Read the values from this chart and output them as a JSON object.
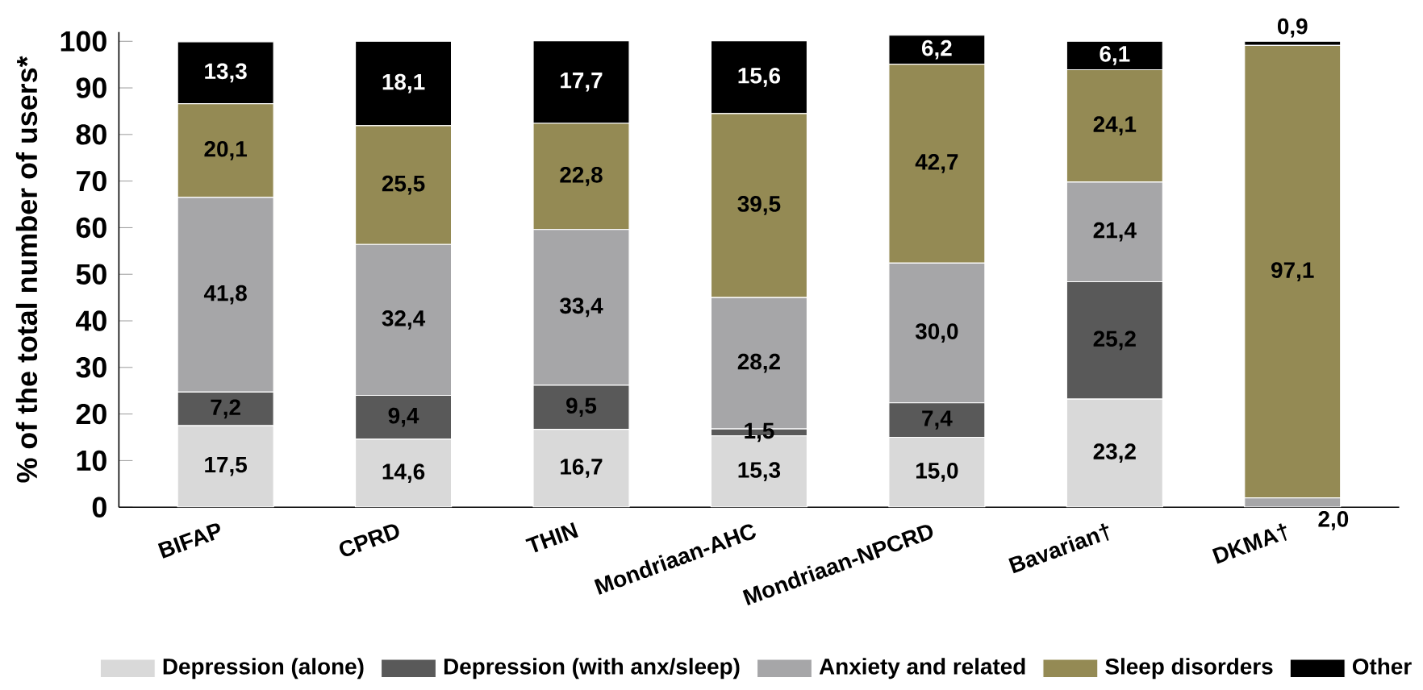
{
  "chart_data": {
    "type": "bar",
    "stacked": true,
    "ylabel": "% of the total number of users*",
    "categories": [
      "BIFAP",
      "CPRD",
      "THIN",
      "Mondriaan-AHC",
      "Mondriaan-NPCRD",
      "Bavarian†",
      "DKMA†"
    ],
    "ylim": [
      0,
      102
    ],
    "yticks": [
      0,
      10,
      20,
      30,
      40,
      50,
      60,
      70,
      80,
      90,
      100
    ],
    "legend": "bottom",
    "grid": false,
    "series": [
      {
        "name": "Depression (alone)",
        "color": "#d9d9d9",
        "values": [
          17.5,
          14.6,
          16.7,
          15.3,
          15.0,
          23.2,
          0
        ],
        "value_labels": [
          "17,5",
          "14,6",
          "16,7",
          "15,3",
          "15,0",
          "23,2",
          null
        ]
      },
      {
        "name": "Depression  (with anx/sleep)",
        "color": "#595959",
        "values": [
          7.2,
          9.4,
          9.5,
          1.5,
          7.4,
          25.2,
          0
        ],
        "value_labels": [
          "7,2",
          "9,4",
          "9,5",
          "1,5",
          "7,4",
          "25,2",
          null
        ]
      },
      {
        "name": "Anxiety and related",
        "color": "#a6a6a8",
        "values": [
          41.8,
          32.4,
          33.4,
          28.2,
          30.0,
          21.4,
          2.0
        ],
        "value_labels": [
          "41,8",
          "32,4",
          "33,4",
          "28,2",
          "30,0",
          "21,4",
          "2,0"
        ]
      },
      {
        "name": "Sleep disorders",
        "color": "#948a54",
        "values": [
          20.1,
          25.5,
          22.8,
          39.5,
          42.7,
          24.1,
          97.1
        ],
        "value_labels": [
          "20,1",
          "25,5",
          "22,8",
          "39,5",
          "42,7",
          "24,1",
          "97,1"
        ]
      },
      {
        "name": "Other",
        "color": "#000000",
        "values": [
          13.3,
          18.1,
          17.7,
          15.6,
          6.2,
          6.1,
          0.9
        ],
        "value_labels": [
          "13,3",
          "18,1",
          "17,7",
          "15,6",
          "6,2",
          "6,1",
          "0,9"
        ]
      }
    ]
  }
}
